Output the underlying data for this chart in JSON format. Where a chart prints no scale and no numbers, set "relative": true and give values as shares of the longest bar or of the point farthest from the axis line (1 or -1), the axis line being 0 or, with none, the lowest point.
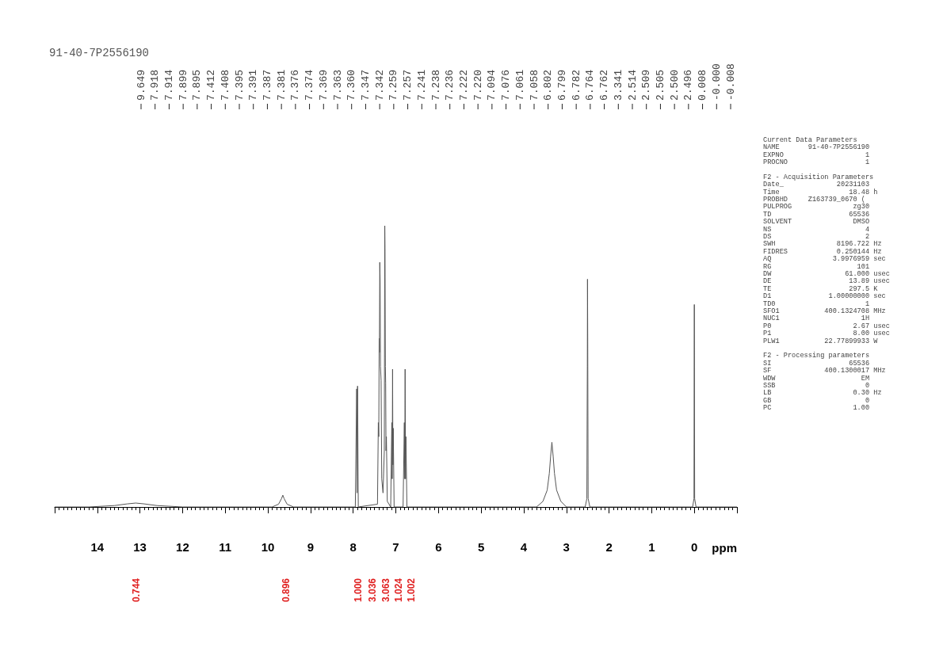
{
  "chart_data": {
    "type": "line",
    "title": "91-40-7P2556190",
    "xlabel": "ppm",
    "relative": true,
    "xlim": [
      15,
      -1
    ],
    "xticks": [
      14,
      13,
      12,
      11,
      10,
      9,
      8,
      7,
      6,
      5,
      4,
      3,
      2,
      1,
      0
    ],
    "series": [
      {
        "color": "#555555",
        "x": [
          15,
          14.2,
          13.6,
          13.3,
          13.1,
          12.9,
          12.6,
          12.0,
          9.9,
          9.75,
          9.68,
          9.65,
          9.62,
          9.55,
          9.4,
          7.95,
          7.918,
          7.909,
          7.897,
          7.88,
          7.43,
          7.41,
          7.4,
          7.39,
          7.385,
          7.376,
          7.368,
          7.36,
          7.345,
          7.33,
          7.3,
          7.27,
          7.259,
          7.254,
          7.245,
          7.238,
          7.23,
          7.221,
          7.2,
          7.12,
          7.094,
          7.085,
          7.076,
          7.068,
          7.06,
          7.04,
          6.83,
          6.8,
          6.79,
          6.782,
          6.772,
          6.763,
          6.74,
          3.7,
          3.55,
          3.45,
          3.4,
          3.37,
          3.34,
          3.31,
          3.28,
          3.23,
          3.13,
          3.0,
          2.56,
          2.52,
          2.509,
          2.505,
          2.5,
          2.49,
          2.45,
          0.04,
          0.008,
          0,
          -0.008,
          -0.04,
          -1
        ],
        "values": [
          0,
          0,
          0.005,
          0.011,
          0.014,
          0.011,
          0.005,
          0,
          0,
          0.01,
          0.03,
          0.042,
          0.03,
          0.01,
          0,
          0,
          0.42,
          0.05,
          0.43,
          0,
          0.01,
          0.3,
          0.25,
          0.6,
          0.55,
          0.87,
          0.8,
          0.5,
          0.45,
          0.1,
          0.05,
          0.2,
          1,
          0.92,
          0.5,
          0.44,
          0.2,
          0.25,
          0.02,
          0,
          0.3,
          0.1,
          0.49,
          0.15,
          0.28,
          0,
          0,
          0.3,
          0.1,
          0.49,
          0.1,
          0.25,
          0,
          0,
          0.02,
          0.06,
          0.12,
          0.18,
          0.23,
          0.18,
          0.12,
          0.06,
          0.02,
          0,
          0,
          0.03,
          0.5,
          0.81,
          0.6,
          0.03,
          0,
          0,
          0.03,
          0.72,
          0.03,
          0,
          0
        ]
      }
    ],
    "annotations": [
      "9.649",
      "7.918",
      "7.914",
      "7.899",
      "7.895",
      "7.412",
      "7.408",
      "7.395",
      "7.391",
      "7.387",
      "7.381",
      "7.376",
      "7.374",
      "7.369",
      "7.363",
      "7.360",
      "7.347",
      "7.342",
      "7.259",
      "7.257",
      "7.241",
      "7.238",
      "7.236",
      "7.222",
      "7.220",
      "7.094",
      "7.076",
      "7.061",
      "7.058",
      "6.802",
      "6.799",
      "6.782",
      "6.764",
      "6.762",
      "3.341",
      "2.514",
      "2.509",
      "2.505",
      "2.500",
      "2.496",
      "0.008",
      "-0.000",
      "-0.008",
      "0.744",
      "0.896",
      "1.000",
      "3.036",
      "3.063",
      "1.024",
      "1.002",
      "Current Data Parameters\nNAME       91-40-7P2556190\nEXPNO                    1\nPROCNO                   1\n\nF2 - Acquisition Parameters\nDate_             20231103\nTime                 18.48 h\nPROBHD     Z163739_0670 (\nPULPROG               zg30\nTD                   65536\nSOLVENT               DMSO\nNS                       4\nDS                       2\nSWH               8196.722 Hz\nFIDRES            0.250144 Hz\nAQ               3.9976959 sec\nRG                     101\nDW                  61.000 usec\nDE                   13.89 usec\nTE                   297.5 K\nD1              1.00000000 sec\nTD0                      1\nSFO1           400.1324708 MHz\nNUC1                    1H\nP0                    2.67 usec\nP1                    8.00 usec\nPLW1           22.77899933 W\n\nF2 - Processing parameters\nSI                   65536\nSF             400.1300017 MHz\nWDW                     EM\nSSB                      0\nLB                    0.30 Hz\nGB                       0\nPC                    1.00"
    ]
  }
}
